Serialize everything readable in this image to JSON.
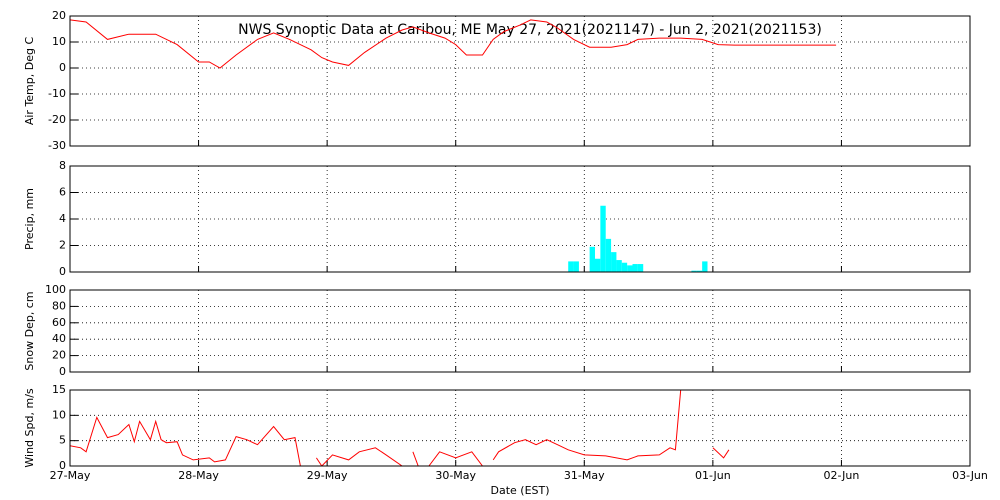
{
  "chart_data": [
    {
      "type": "line",
      "title": "NWS Synoptic Data at Caribou, ME   May 27, 2021(2021147) - Jun  2, 2021(2021153)",
      "ylabel": "Air Temp, Deg C",
      "color": "#ff0000",
      "x": [
        0,
        3,
        7,
        11,
        16,
        20,
        24,
        26,
        28,
        31,
        35,
        38,
        41,
        45,
        47,
        49,
        52,
        55,
        59,
        62,
        64,
        67,
        70,
        72,
        74,
        77,
        79,
        81,
        84,
        86,
        89,
        91,
        94,
        97,
        101,
        104,
        106,
        110,
        114,
        118,
        121,
        124,
        143
      ],
      "values": [
        18.5,
        17.7,
        11,
        13,
        13,
        9,
        2.3,
        2.3,
        0,
        5,
        11,
        13.5,
        11,
        7,
        4,
        2.3,
        1,
        6,
        11.5,
        14.6,
        15.8,
        13.5,
        11.5,
        9,
        5,
        5,
        11,
        14,
        16.5,
        18.5,
        17.7,
        15.4,
        11,
        8,
        8,
        9,
        11,
        11.5,
        11.5,
        11,
        9,
        8.8,
        8.8
      ],
      "xlim": [
        0,
        168
      ],
      "ylim": [
        -30,
        20
      ],
      "yticks": [
        -30,
        -20,
        -10,
        0,
        10,
        20
      ],
      "grid": true
    },
    {
      "type": "bar",
      "ylabel": "Precip, mm",
      "color": "#00ffff",
      "x": [
        93,
        94,
        97,
        98,
        99,
        100,
        101,
        102,
        103,
        104,
        105,
        106,
        116,
        117,
        118
      ],
      "values": [
        0.8,
        0.8,
        1.9,
        1.0,
        5.0,
        2.5,
        1.5,
        0.9,
        0.7,
        0.5,
        0.6,
        0.6,
        0.1,
        0.1,
        0.8
      ],
      "xlim": [
        0,
        168
      ],
      "ylim": [
        0,
        8
      ],
      "yticks": [
        0,
        2,
        4,
        6,
        8
      ],
      "grid": true
    },
    {
      "type": "line",
      "ylabel": "Snow Dep, cm",
      "xlim": [
        0,
        168
      ],
      "ylim": [
        0,
        100
      ],
      "yticks": [
        0,
        20,
        40,
        60,
        80,
        100
      ],
      "grid": true
    },
    {
      "type": "line",
      "ylabel": "Wind Spd, m/s",
      "xlabel": "Date (EST)",
      "color": "#ff0000",
      "x": [
        0,
        2,
        3,
        5,
        7,
        9,
        11,
        12,
        13,
        15,
        16,
        17,
        18,
        20,
        21,
        23,
        26,
        27,
        29,
        31,
        33,
        35,
        38,
        40,
        42,
        43,
        44,
        46,
        47,
        49,
        52,
        54,
        57,
        59,
        62,
        63,
        64,
        65,
        67,
        69,
        72,
        75,
        77,
        78,
        79,
        80,
        83,
        85,
        87,
        89,
        91,
        93,
        96,
        100,
        104,
        106,
        110,
        112,
        113,
        114,
        115,
        120,
        122,
        123
      ],
      "values": [
        4,
        3.6,
        2.8,
        9.6,
        5.6,
        6.2,
        8.2,
        4.8,
        8.8,
        5.2,
        8.8,
        5.2,
        4.6,
        4.8,
        2.2,
        1.2,
        1.6,
        0.8,
        1.2,
        5.8,
        5.2,
        4.2,
        7.8,
        5.2,
        5.6,
        0,
        null,
        1.6,
        0,
        2.2,
        1.2,
        2.8,
        3.6,
        2.2,
        0,
        null,
        2.8,
        0,
        0,
        2.8,
        1.6,
        2.8,
        0,
        null,
        1.2,
        2.8,
        4.6,
        5.2,
        4.2,
        5.2,
        4.2,
        3.2,
        2.2,
        2,
        1.2,
        2,
        2.2,
        3.6,
        3.2,
        15,
        null,
        3.6,
        1.6,
        3.2
      ],
      "xlim": [
        0,
        168
      ],
      "ylim": [
        0,
        15
      ],
      "yticks": [
        0,
        5,
        10,
        15
      ],
      "grid": true,
      "xticks": [
        {
          "value": 0,
          "label": "27-May"
        },
        {
          "value": 24,
          "label": "28-May"
        },
        {
          "value": 48,
          "label": "29-May"
        },
        {
          "value": 72,
          "label": "30-May"
        },
        {
          "value": 96,
          "label": "31-May"
        },
        {
          "value": 120,
          "label": "01-Jun"
        },
        {
          "value": 144,
          "label": "02-Jun"
        },
        {
          "value": 168,
          "label": "03-Jun"
        }
      ]
    }
  ]
}
